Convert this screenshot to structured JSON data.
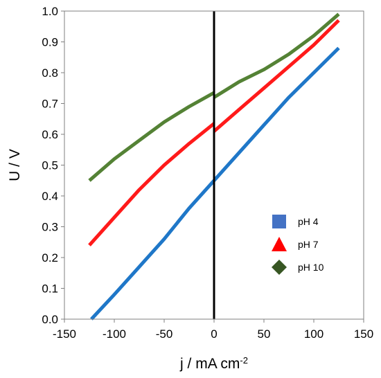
{
  "chart_data": {
    "type": "line",
    "xlabel": "j / mA cm",
    "xlabel_sup": "-2",
    "ylabel": "U / V",
    "xlim": [
      -150,
      150
    ],
    "ylim": [
      0.0,
      1.0
    ],
    "xticks": [
      "-150",
      "-100",
      "-50",
      "0",
      "50",
      "100",
      "150"
    ],
    "yticks": [
      "0.0",
      "0.1",
      "0.2",
      "0.3",
      "0.4",
      "0.5",
      "0.6",
      "0.7",
      "0.8",
      "0.9",
      "1.0"
    ],
    "grid": false,
    "legend_position": "right",
    "series": [
      {
        "name": "pH 4",
        "color": "#1f77c8",
        "marker": "square",
        "legend_color": "#4472c4",
        "branches": [
          {
            "x": [
              -123,
              -100,
              -75,
              -50,
              -25,
              0
            ],
            "y": [
              0.0,
              0.08,
              0.17,
              0.26,
              0.36,
              0.45
            ]
          },
          {
            "x": [
              0,
              25,
              50,
              75,
              100,
              125
            ],
            "y": [
              0.45,
              0.54,
              0.63,
              0.72,
              0.8,
              0.88
            ]
          }
        ]
      },
      {
        "name": "pH 7",
        "color": "#ff1a1a",
        "marker": "triangle",
        "legend_color": "#ff0000",
        "branches": [
          {
            "x": [
              -125,
              -100,
              -75,
              -50,
              -25,
              0
            ],
            "y": [
              0.24,
              0.33,
              0.42,
              0.5,
              0.57,
              0.635
            ]
          },
          {
            "x": [
              0,
              25,
              50,
              75,
              100,
              125
            ],
            "y": [
              0.61,
              0.68,
              0.75,
              0.82,
              0.89,
              0.97
            ]
          }
        ]
      },
      {
        "name": "pH 10",
        "color": "#548235",
        "marker": "diamond",
        "legend_color": "#375623",
        "branches": [
          {
            "x": [
              -125,
              -100,
              -75,
              -50,
              -25,
              0
            ],
            "y": [
              0.45,
              0.52,
              0.58,
              0.64,
              0.69,
              0.735
            ]
          },
          {
            "x": [
              0,
              25,
              50,
              75,
              100,
              125
            ],
            "y": [
              0.72,
              0.77,
              0.81,
              0.86,
              0.92,
              0.99
            ]
          }
        ]
      }
    ],
    "zero_line": {
      "x": 0,
      "color": "#000000"
    }
  }
}
